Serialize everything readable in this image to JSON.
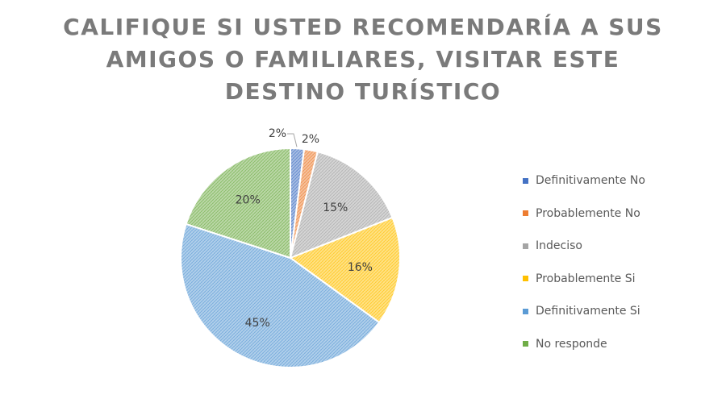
{
  "chart_data": {
    "type": "pie",
    "title_lines": [
      "CALIFIQUE SI USTED RECOMENDARÍA A SUS",
      "AMIGOS O FAMILIARES, VISITAR ESTE",
      "DESTINO TURÍSTICO"
    ],
    "legend_placement": "right",
    "slices": [
      {
        "label": "Definitivamente No",
        "value": 2,
        "display": "2%",
        "color": "#4472C4"
      },
      {
        "label": "Probablemente No",
        "value": 2,
        "display": "2%",
        "color": "#ED7D31"
      },
      {
        "label": "Indeciso",
        "value": 15,
        "display": "15%",
        "color": "#A5A5A5"
      },
      {
        "label": "Probablemente Si",
        "value": 16,
        "display": "16%",
        "color": "#FFC000"
      },
      {
        "label": "Definitivamente Si",
        "value": 45,
        "display": "45%",
        "color": "#5B9BD5"
      },
      {
        "label": "No responde",
        "value": 20,
        "display": "20%",
        "color": "#70AD47"
      }
    ]
  }
}
